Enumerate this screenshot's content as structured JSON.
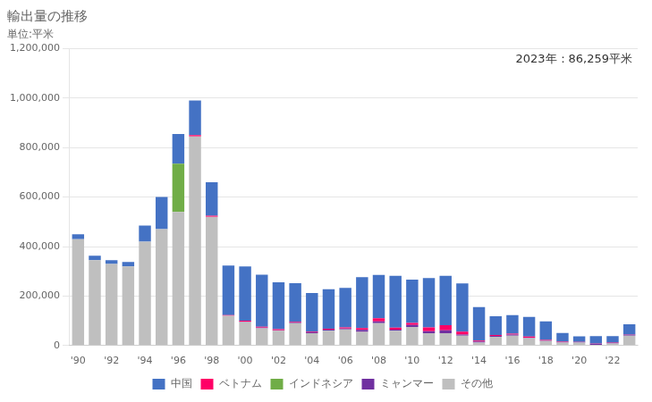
{
  "chart_data": {
    "type": "bar",
    "title": "輸出量の推移",
    "subtitle": "単位:平米",
    "annotations": [
      "2023年：86,259平米"
    ],
    "categories": [
      "'90",
      null,
      "'92",
      null,
      "'94",
      null,
      "'96",
      null,
      "'98",
      null,
      "'00",
      null,
      "'02",
      null,
      "'04",
      null,
      "'06",
      null,
      "'08",
      null,
      "'10",
      null,
      "'12",
      null,
      "'14",
      null,
      "'16",
      null,
      "'18",
      null,
      "'20",
      null,
      "'22",
      null
    ],
    "series": [
      {
        "name": "中国",
        "color": "#4472c4",
        "values": [
          20000,
          18000,
          15000,
          18000,
          65000,
          130000,
          120000,
          140000,
          135000,
          200000,
          220000,
          210000,
          190000,
          155000,
          155000,
          160000,
          160000,
          205000,
          175000,
          210000,
          175000,
          200000,
          200000,
          195000,
          135000,
          75000,
          75000,
          80000,
          75000,
          35000,
          22000,
          30000,
          25000,
          40000
        ]
      },
      {
        "name": "ベトナム",
        "color": "#ff0066",
        "values": [
          0,
          0,
          0,
          0,
          0,
          0,
          0,
          5000,
          5000,
          3000,
          3000,
          4000,
          4000,
          3000,
          3000,
          4000,
          4000,
          8000,
          12000,
          8000,
          8000,
          15000,
          20000,
          12000,
          4000,
          4000,
          4000,
          4000,
          3000,
          2000,
          1500,
          1500,
          1500,
          1500
        ]
      },
      {
        "name": "インドネシア",
        "color": "#70ad47",
        "values": [
          0,
          0,
          0,
          0,
          0,
          0,
          195000,
          0,
          0,
          0,
          0,
          0,
          0,
          0,
          0,
          0,
          0,
          0,
          0,
          0,
          0,
          0,
          0,
          0,
          0,
          0,
          0,
          0,
          0,
          0,
          0,
          0,
          0,
          0
        ]
      },
      {
        "name": "ミャンマー",
        "color": "#7030a0",
        "values": [
          0,
          0,
          0,
          0,
          0,
          0,
          0,
          0,
          0,
          0,
          2000,
          2000,
          2000,
          4000,
          4000,
          4000,
          4000,
          8000,
          8000,
          4000,
          8000,
          8000,
          12000,
          4000,
          4000,
          4000,
          4000,
          2000,
          2000,
          1500,
          1500,
          4000,
          4000,
          4000
        ]
      },
      {
        "name": "その他",
        "color": "#bfbfbf",
        "values": [
          430000,
          345000,
          330000,
          320000,
          420000,
          470000,
          540000,
          845000,
          520000,
          120000,
          95000,
          70000,
          60000,
          90000,
          50000,
          60000,
          65000,
          55000,
          90000,
          60000,
          75000,
          50000,
          50000,
          40000,
          12000,
          35000,
          40000,
          30000,
          18000,
          12000,
          12000,
          3000,
          8000,
          40000
        ]
      }
    ],
    "stacked": true,
    "ylim": [
      0,
      1200000
    ],
    "yticks": [
      0,
      {
        "value": 200000,
        "label": "200,000"
      },
      {
        "value": 400000,
        "label": "400,000"
      },
      {
        "value": 600000,
        "label": "600,000"
      },
      {
        "value": 800000,
        "label": "800,000"
      },
      {
        "value": 1000000,
        "label": "1,000,000"
      },
      {
        "value": 1200000,
        "label": "1,200,000"
      }
    ],
    "grid": true,
    "legend": "bottom"
  }
}
